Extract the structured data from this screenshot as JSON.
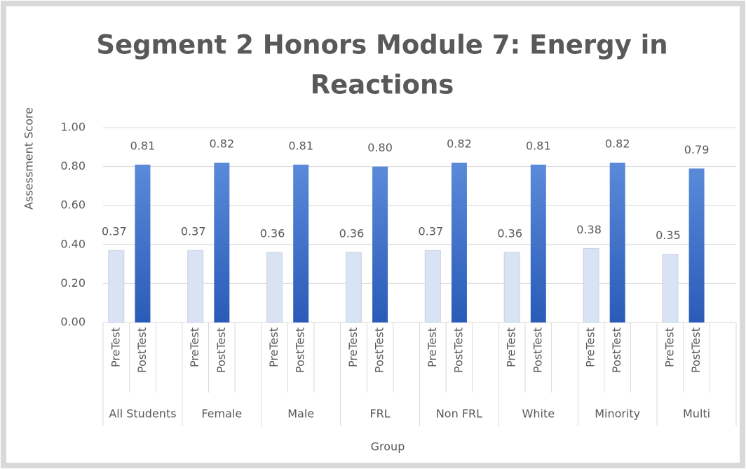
{
  "chart_data": {
    "type": "bar",
    "title": [
      "Segment 2 Honors Module 7: Energy in",
      "Reactions"
    ],
    "y_label": "Assessment Score",
    "x_label": "Group",
    "groups": [
      "All Students",
      "Female",
      "Male",
      "FRL",
      "Non FRL",
      "White",
      "Minority",
      "Multi"
    ],
    "categories": [
      "PreTest",
      "PostTest",
      null,
      "PreTest",
      "PostTest",
      null,
      "PreTest",
      "PostTest",
      null,
      "PreTest",
      "PostTest",
      null,
      "PreTest",
      "PostTest",
      null,
      "PreTest",
      "PostTest",
      null,
      "PreTest",
      "PostTest",
      null,
      "PreTest",
      "PostTest"
    ],
    "values": [
      0.37,
      0.81,
      null,
      0.37,
      0.82,
      null,
      0.36,
      0.81,
      null,
      0.36,
      0.8,
      null,
      0.37,
      0.82,
      null,
      0.36,
      0.81,
      null,
      0.38,
      0.82,
      null,
      0.35,
      0.79
    ],
    "value_labels": [
      "0.37",
      "0.81",
      null,
      "0.37",
      "0.82",
      null,
      "0.36",
      "0.81",
      null,
      "0.36",
      "0.80",
      null,
      "0.37",
      "0.82",
      null,
      "0.36",
      "0.81",
      null,
      "0.38",
      "0.82",
      null,
      "0.35",
      "0.79"
    ],
    "colors": [
      "#dae3f3",
      "#3b6fcb",
      null,
      "#dae3f3",
      "#3b6fcb",
      null,
      "#dae3f3",
      "#3b6fcb",
      null,
      "#dae3f3",
      "#3b6fcb",
      null,
      "#dae3f3",
      "#3b6fcb",
      null,
      "#dae3f3",
      "#3b6fcb",
      null,
      "#dae3f3",
      "#3b6fcb",
      null,
      "#dae3f3",
      "#3b6fcb"
    ],
    "ylim": [
      0,
      1
    ],
    "yticks": [
      {
        "value": 0,
        "label": "0.00"
      },
      {
        "value": 0.2,
        "label": "0.20"
      },
      {
        "value": 0.4,
        "label": "0.40"
      },
      {
        "value": 0.6,
        "label": "0.60"
      },
      {
        "value": 0.8,
        "label": "0.80"
      },
      {
        "value": 1,
        "label": "1.00"
      }
    ],
    "grid": true
  }
}
